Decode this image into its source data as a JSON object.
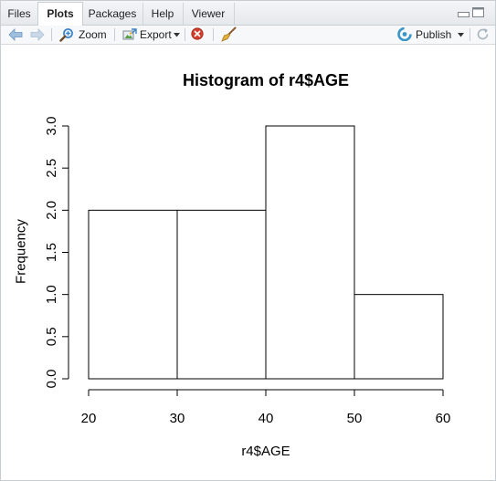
{
  "tabs": [
    {
      "label": "Files"
    },
    {
      "label": "Plots"
    },
    {
      "label": "Packages"
    },
    {
      "label": "Help"
    },
    {
      "label": "Viewer"
    }
  ],
  "toolbar": {
    "zoom_label": "Zoom",
    "export_label": "Export",
    "publish_label": "Publish"
  },
  "icons": {
    "back": "back-arrow-icon",
    "forward": "forward-arrow-icon",
    "zoom": "zoom-icon",
    "export": "export-icon",
    "remove": "remove-icon",
    "clear": "broom-icon",
    "publish": "publish-icon",
    "refresh": "refresh-icon"
  },
  "colors": {
    "accent": "#3b7fc4",
    "remove": "#d23b2a"
  },
  "chart_data": {
    "type": "bar",
    "title": "Histogram of r4$AGE",
    "xlabel": "r4$AGE",
    "ylabel": "Frequency",
    "bins": [
      [
        20,
        30
      ],
      [
        30,
        40
      ],
      [
        40,
        50
      ],
      [
        50,
        60
      ]
    ],
    "values": [
      2,
      2,
      3,
      1
    ],
    "xlim": [
      20,
      60
    ],
    "ylim": [
      0,
      3
    ],
    "xticks": [
      "20",
      "30",
      "40",
      "50",
      "60"
    ],
    "yticks": [
      "0.0",
      "0.5",
      "1.0",
      "1.5",
      "2.0",
      "2.5",
      "3.0"
    ]
  }
}
